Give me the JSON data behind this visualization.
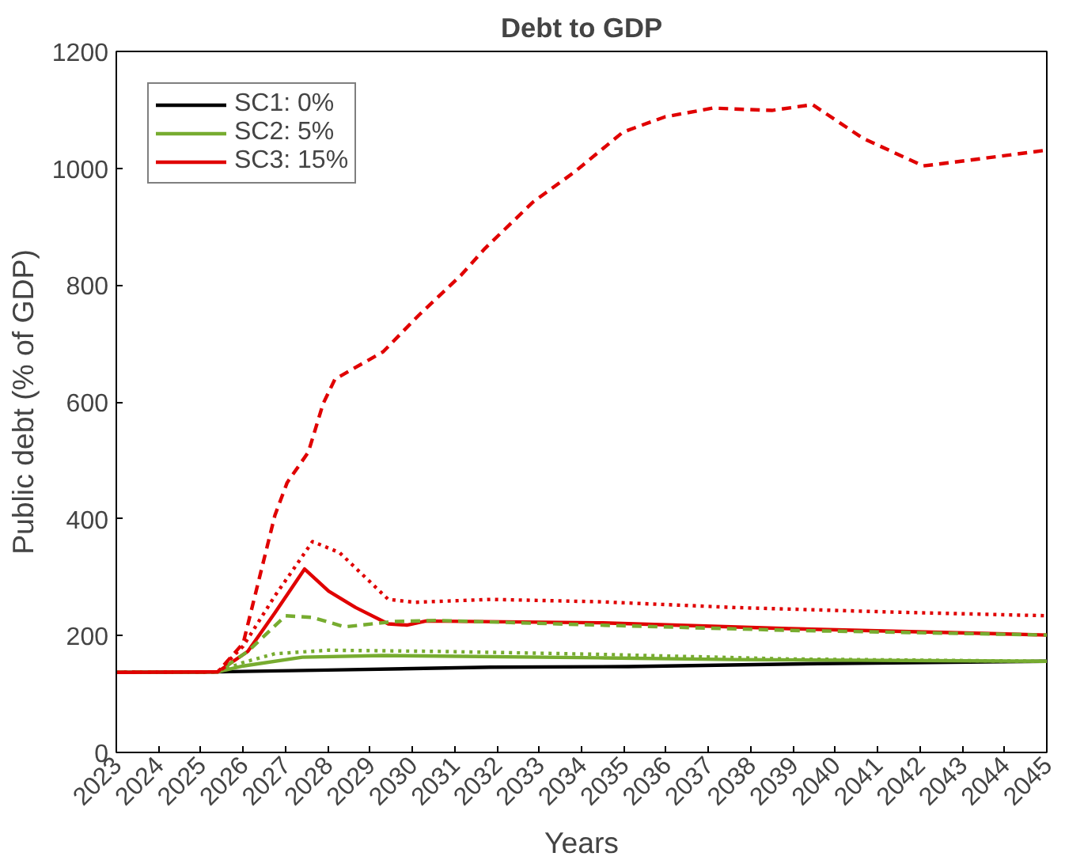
{
  "chart_data": {
    "type": "line",
    "title": "Debt to GDP",
    "xlabel": "Years",
    "ylabel": "Public debt (% of GDP)",
    "xlim": [
      2023,
      2045
    ],
    "ylim": [
      0,
      1200
    ],
    "xticks": [
      2023,
      2024,
      2025,
      2026,
      2027,
      2028,
      2029,
      2030,
      2031,
      2032,
      2033,
      2034,
      2035,
      2036,
      2037,
      2038,
      2039,
      2040,
      2041,
      2042,
      2043,
      2044,
      2045
    ],
    "yticks": [
      0,
      200,
      400,
      600,
      800,
      1000,
      1200
    ],
    "grid": false,
    "legend": "top left",
    "series": [
      {
        "name": "SC1: 0%",
        "color": "#000000",
        "line_style": "solid",
        "x": [
          2023,
          2025.4,
          2028.0,
          2031.85,
          2035.1,
          2039.6,
          2045
        ],
        "values": [
          137,
          138,
          141,
          146,
          147,
          152,
          156
        ]
      },
      {
        "name": "SC2: 5%",
        "color": "#77ac30",
        "line_style": "solid",
        "x": [
          2023,
          2025.4,
          2026.0,
          2027.4,
          2029.3,
          2034.4,
          2037.65,
          2045
        ],
        "values": [
          137,
          138,
          148,
          163,
          166,
          162,
          159,
          156
        ]
      },
      {
        "name": "SC3: 15%",
        "color": "#e00000",
        "line_style": "solid",
        "x": [
          2023,
          2025.4,
          2026.11,
          2026.75,
          2027.45,
          2028.02,
          2028.66,
          2029.43,
          2029.87,
          2030.32,
          2034.4,
          2038.9,
          2045
        ],
        "values": [
          137,
          138,
          173,
          239,
          314,
          276,
          248,
          220,
          218,
          225,
          222,
          212,
          201
        ]
      },
      {
        "color": "#77ac30",
        "line_style": "dashed",
        "x": [
          2023,
          2025.4,
          2026.11,
          2027.0,
          2027.64,
          2028.4,
          2029.55,
          2030.57,
          2034.4,
          2038.9,
          2045
        ],
        "values": [
          137,
          138,
          173,
          234,
          231,
          215,
          224,
          226,
          218,
          209,
          201
        ]
      },
      {
        "color": "#77ac30",
        "line_style": "dotted",
        "x": [
          2023,
          2025.4,
          2026.0,
          2026.75,
          2028.02,
          2030.57,
          2034.4,
          2038.9,
          2045
        ],
        "values": [
          137,
          138,
          154,
          169,
          175,
          173,
          168,
          160,
          156
        ]
      },
      {
        "color": "#e00000",
        "line_style": "dotted",
        "x": [
          2023,
          2025.4,
          2026.0,
          2026.75,
          2027.64,
          2028.28,
          2029.43,
          2030.06,
          2031.85,
          2034.4,
          2037.65,
          2041.5,
          2045
        ],
        "values": [
          137,
          138,
          182,
          268,
          361,
          342,
          262,
          257,
          262,
          258,
          248,
          240,
          234
        ]
      },
      {
        "color": "#e00000",
        "line_style": "dashed",
        "x": [
          2023,
          2025.4,
          2026.0,
          2026.75,
          2027.04,
          2027.54,
          2027.89,
          2028.17,
          2029.31,
          2030.16,
          2031.15,
          2031.72,
          2032.85,
          2033.84,
          2034.98,
          2035.97,
          2037.1,
          2038.5,
          2039.46,
          2040.66,
          2042.08,
          2043.08,
          2045
        ],
        "values": [
          137,
          138,
          187,
          406,
          462,
          514,
          597,
          639,
          686,
          749,
          817,
          863,
          942,
          994,
          1062,
          1088,
          1103,
          1099,
          1109,
          1051,
          1004,
          1013,
          1031
        ]
      }
    ]
  }
}
